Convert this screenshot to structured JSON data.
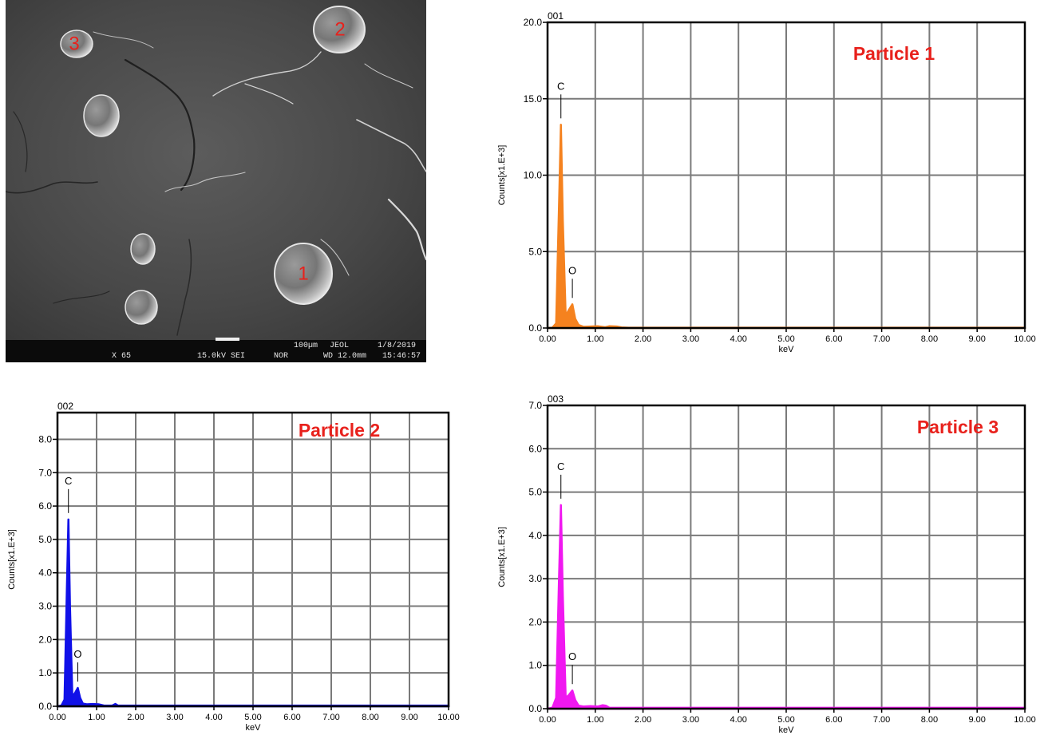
{
  "sem_image": {
    "particle_labels": [
      "1",
      "2",
      "3"
    ],
    "label_color": "#e8211c",
    "info_bar": {
      "scale": "100µm",
      "maker": "JEOL",
      "date": "1/8/2019",
      "mag": "X 65",
      "voltage": "15.0kV SEI",
      "mode": "NOR",
      "wd": "WD 12.0mm",
      "time": "15:46:57"
    }
  },
  "chart_data": [
    {
      "type": "area",
      "spectrum_id": "001",
      "annotation": "Particle 1",
      "annotation_color": "#e8211c",
      "color": "#f5821f",
      "xlabel": "keV",
      "ylabel": "Counts[x1.E+3]",
      "xlim": [
        0,
        10
      ],
      "ylim": [
        0,
        20
      ],
      "xticks": [
        "0.00",
        "1.00",
        "2.00",
        "3.00",
        "4.00",
        "5.00",
        "6.00",
        "7.00",
        "8.00",
        "9.00",
        "10.00"
      ],
      "yticks": [
        "0.0",
        "5.0",
        "10.0",
        "15.0",
        "20.0"
      ],
      "grid": true,
      "peaks": [
        {
          "label": "C",
          "x": 0.28,
          "y": 13.3
        },
        {
          "label": "O",
          "x": 0.52,
          "y": 1.55
        }
      ],
      "x": [
        0.0,
        0.1,
        0.18,
        0.24,
        0.28,
        0.32,
        0.38,
        0.45,
        0.52,
        0.58,
        0.65,
        0.75,
        0.9,
        1.05,
        1.2,
        1.3,
        1.45,
        1.55,
        1.7,
        2.0,
        10.0
      ],
      "y": [
        0.0,
        0.02,
        0.3,
        8.0,
        13.3,
        7.0,
        0.8,
        1.2,
        1.55,
        0.6,
        0.2,
        0.08,
        0.1,
        0.12,
        0.05,
        0.12,
        0.1,
        0.04,
        0.02,
        0.02,
        0.02
      ]
    },
    {
      "type": "area",
      "spectrum_id": "002",
      "annotation": "Particle 2",
      "annotation_color": "#e8211c",
      "color": "#1010e8",
      "xlabel": "keV",
      "ylabel": "Counts[x1.E+3]",
      "xlim": [
        0,
        10
      ],
      "ylim": [
        0,
        8.8
      ],
      "xticks": [
        "0.00",
        "1.00",
        "2.00",
        "3.00",
        "4.00",
        "5.00",
        "6.00",
        "7.00",
        "8.00",
        "9.00",
        "10.00"
      ],
      "yticks": [
        "0.0",
        "1.0",
        "2.0",
        "3.0",
        "4.0",
        "5.0",
        "6.0",
        "7.0",
        "8.0"
      ],
      "grid": true,
      "peaks": [
        {
          "label": "C",
          "x": 0.28,
          "y": 5.6
        },
        {
          "label": "O",
          "x": 0.52,
          "y": 0.55
        }
      ],
      "x": [
        0.0,
        0.1,
        0.18,
        0.24,
        0.28,
        0.32,
        0.38,
        0.45,
        0.52,
        0.58,
        0.65,
        0.75,
        0.9,
        1.05,
        1.2,
        1.4,
        1.48,
        1.55,
        1.7,
        2.0,
        10.0
      ],
      "y": [
        0.0,
        0.02,
        0.2,
        3.5,
        5.6,
        3.0,
        0.3,
        0.4,
        0.55,
        0.25,
        0.08,
        0.06,
        0.07,
        0.06,
        0.02,
        0.02,
        0.07,
        0.02,
        0.02,
        0.02,
        0.02
      ]
    },
    {
      "type": "area",
      "spectrum_id": "003",
      "annotation": "Particle 3",
      "annotation_color": "#e8211c",
      "color": "#f018f0",
      "xlabel": "keV",
      "ylabel": "Counts[x1.E+3]",
      "xlim": [
        0,
        10
      ],
      "ylim": [
        0,
        7
      ],
      "xticks": [
        "0.00",
        "1.00",
        "2.00",
        "3.00",
        "4.00",
        "5.00",
        "6.00",
        "7.00",
        "8.00",
        "9.00",
        "10.00"
      ],
      "yticks": [
        "0.0",
        "1.0",
        "2.0",
        "3.0",
        "4.0",
        "5.0",
        "6.0",
        "7.0"
      ],
      "grid": true,
      "peaks": [
        {
          "label": "C",
          "x": 0.28,
          "y": 4.7
        },
        {
          "label": "O",
          "x": 0.52,
          "y": 0.42
        }
      ],
      "x": [
        0.0,
        0.1,
        0.18,
        0.24,
        0.28,
        0.32,
        0.38,
        0.45,
        0.52,
        0.58,
        0.65,
        0.75,
        0.9,
        1.05,
        1.15,
        1.22,
        1.3,
        1.45,
        1.7,
        2.0,
        10.0
      ],
      "y": [
        0.0,
        0.02,
        0.25,
        3.0,
        4.7,
        2.6,
        0.25,
        0.32,
        0.42,
        0.2,
        0.07,
        0.05,
        0.06,
        0.05,
        0.08,
        0.07,
        0.02,
        0.02,
        0.02,
        0.02,
        0.02
      ]
    }
  ]
}
